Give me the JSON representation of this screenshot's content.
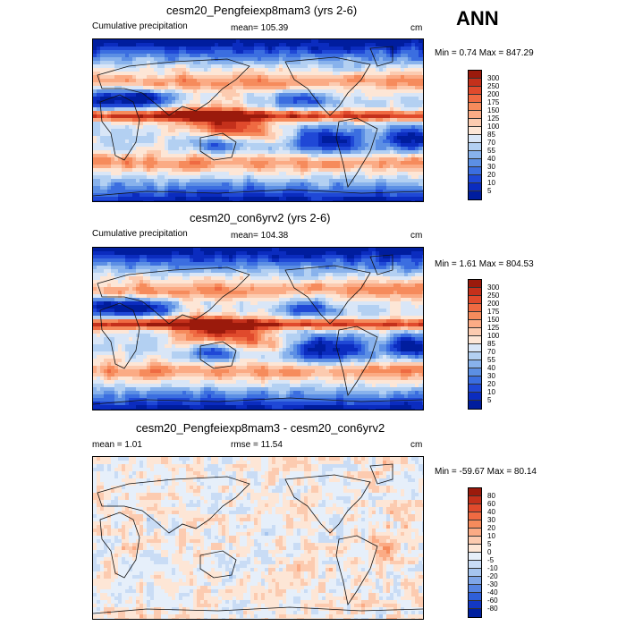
{
  "season_label": "ANN",
  "units": "cm",
  "panels": [
    {
      "title": "cesm20_Pengfeiexp8mam3 (yrs 2-6)",
      "subtitle": "Cumulative precipitation",
      "stat": "mean= 105.39",
      "range": "Min =   0.74 Max = 847.29",
      "colorbar_levels": [
        "300",
        "250",
        "200",
        "175",
        "150",
        "125",
        "100",
        "85",
        "70",
        "55",
        "40",
        "30",
        "20",
        "10",
        "5"
      ],
      "colorbar_colors": [
        "#9b1a0c",
        "#c4301b",
        "#e04a2c",
        "#ef6a42",
        "#f68b5c",
        "#fbab85",
        "#fccbb0",
        "#fde6d6",
        "#d9e6f7",
        "#b3d0f2",
        "#88b2ec",
        "#5c8fe4",
        "#3b6ee0",
        "#1f48d6",
        "#0b2cbf",
        "#001d9e"
      ],
      "field": "precip"
    },
    {
      "title": "cesm20_con6yrv2 (yrs 2-6)",
      "subtitle": "Cumulative precipitation",
      "stat": "mean= 104.38",
      "range": "Min =   1.61 Max = 804.53",
      "colorbar_levels": [
        "300",
        "250",
        "200",
        "175",
        "150",
        "125",
        "100",
        "85",
        "70",
        "55",
        "40",
        "30",
        "20",
        "10",
        "5"
      ],
      "colorbar_colors": [
        "#9b1a0c",
        "#c4301b",
        "#e04a2c",
        "#ef6a42",
        "#f68b5c",
        "#fbab85",
        "#fccbb0",
        "#fde6d6",
        "#d9e6f7",
        "#b3d0f2",
        "#88b2ec",
        "#5c8fe4",
        "#3b6ee0",
        "#1f48d6",
        "#0b2cbf",
        "#001d9e"
      ],
      "field": "precip"
    },
    {
      "title": "cesm20_Pengfeiexp8mam3 - cesm20_con6yrv2",
      "subtitle": "mean =   1.01",
      "stat": "rmse =  11.54",
      "range": "Min = -59.67 Max =  80.14",
      "colorbar_levels": [
        "80",
        "60",
        "40",
        "30",
        "20",
        "10",
        "5",
        "0",
        "-5",
        "-10",
        "-20",
        "-30",
        "-40",
        "-60",
        "-80"
      ],
      "colorbar_colors": [
        "#9b1a0c",
        "#c4301b",
        "#e04a2c",
        "#ef6a42",
        "#f68b5c",
        "#fbab85",
        "#fccbb0",
        "#fde6d6",
        "#e6effa",
        "#c9dcf5",
        "#a6c5ef",
        "#7fa6e8",
        "#5684e2",
        "#2f5fd9",
        "#1338c4",
        "#00209f"
      ],
      "field": "diff"
    }
  ],
  "chart_data": [
    {
      "type": "heatmap",
      "title": "cesm20_Pengfeiexp8mam3 (yrs 2-6)",
      "subtitle": "Cumulative precipitation",
      "mean": 105.39,
      "min": 0.74,
      "max": 847.29,
      "units": "cm",
      "levels": [
        5,
        10,
        20,
        30,
        40,
        55,
        70,
        85,
        100,
        125,
        150,
        175,
        200,
        250,
        300
      ]
    },
    {
      "type": "heatmap",
      "title": "cesm20_con6yrv2 (yrs 2-6)",
      "subtitle": "Cumulative precipitation",
      "mean": 104.38,
      "min": 1.61,
      "max": 804.53,
      "units": "cm",
      "levels": [
        5,
        10,
        20,
        30,
        40,
        55,
        70,
        85,
        100,
        125,
        150,
        175,
        200,
        250,
        300
      ]
    },
    {
      "type": "heatmap",
      "title": "cesm20_Pengfeiexp8mam3 - cesm20_con6yrv2",
      "mean": 1.01,
      "rmse": 11.54,
      "min": -59.67,
      "max": 80.14,
      "units": "cm",
      "levels": [
        -80,
        -60,
        -40,
        -30,
        -20,
        -10,
        -5,
        0,
        5,
        10,
        20,
        30,
        40,
        60,
        80
      ]
    }
  ]
}
